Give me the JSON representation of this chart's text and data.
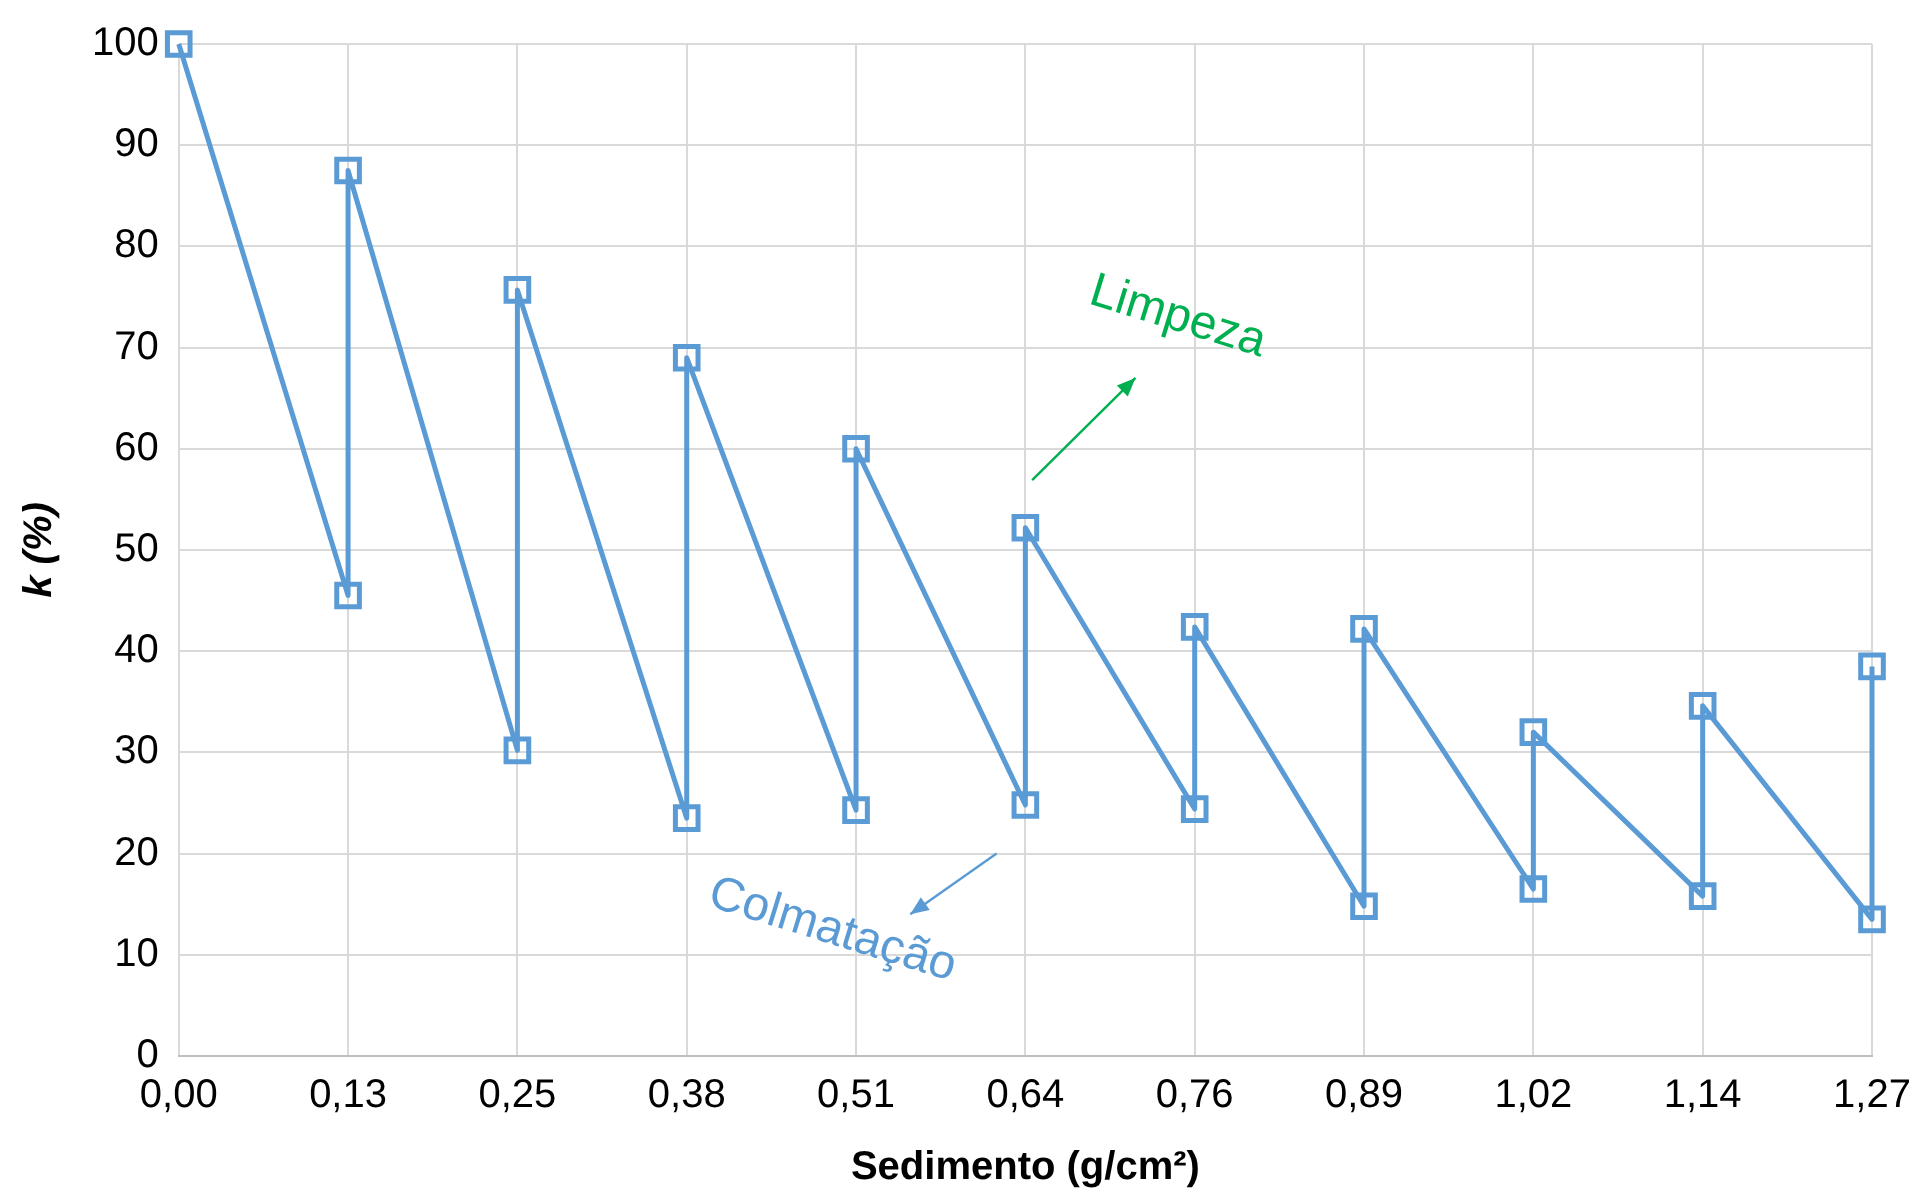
{
  "chart_data": {
    "type": "line",
    "xlabel": "Sedimento (g/cm²)",
    "ylabel": "k (%)",
    "x": [
      0,
      0.127,
      0.127,
      0.254,
      0.254,
      0.381,
      0.381,
      0.508,
      0.508,
      0.635,
      0.635,
      0.762,
      0.762,
      0.889,
      0.889,
      1.016,
      1.016,
      1.143,
      1.143,
      1.27,
      1.27
    ],
    "series": [
      {
        "color": "#5b9bd5",
        "values": [
          100,
          45.5,
          87.5,
          30.2,
          75.7,
          23.5,
          69,
          24.3,
          60,
          24.8,
          52.2,
          24.4,
          42.4,
          14.8,
          42.2,
          16.5,
          32,
          15.8,
          34.6,
          13.5,
          38.5
        ]
      }
    ],
    "xlim": [
      0,
      1.27
    ],
    "xticks": [
      {
        "value": 0,
        "label": "0,00"
      },
      {
        "value": 0.127,
        "label": "0,13"
      },
      {
        "value": 0.254,
        "label": "0,25"
      },
      {
        "value": 0.381,
        "label": "0,38"
      },
      {
        "value": 0.508,
        "label": "0,51"
      },
      {
        "value": 0.635,
        "label": "0,64"
      },
      {
        "value": 0.762,
        "label": "0,76"
      },
      {
        "value": 0.889,
        "label": "0,89"
      },
      {
        "value": 1.016,
        "label": "1,02"
      },
      {
        "value": 1.143,
        "label": "1,14"
      },
      {
        "value": 1.27,
        "label": "1,27"
      }
    ],
    "ylim": [
      0,
      100
    ],
    "yticks": [
      0,
      10,
      20,
      30,
      40,
      50,
      60,
      70,
      80,
      90,
      100
    ],
    "grid": true,
    "legend": false,
    "marker": "square",
    "line_style": "solid",
    "annotations": [
      "Limpeza",
      "Colmatação"
    ]
  }
}
